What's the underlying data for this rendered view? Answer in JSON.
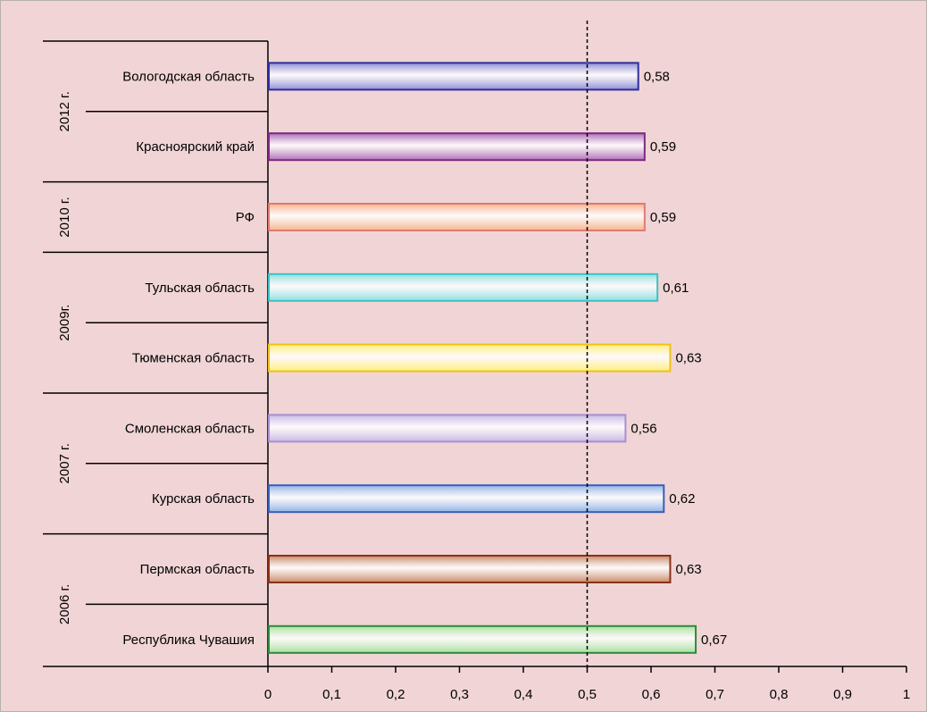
{
  "chart_data": {
    "type": "bar",
    "orientation": "horizontal",
    "categories": [
      "Вологодская область",
      "Красноярский край",
      "РФ",
      "Тульская область",
      "Тюменская область",
      "Смоленская область",
      "Курская область",
      "Пермская область",
      "Республика Чувашия"
    ],
    "values": [
      0.58,
      0.59,
      0.59,
      0.61,
      0.63,
      0.56,
      0.62,
      0.63,
      0.67
    ],
    "value_labels": [
      "0,58",
      "0,59",
      "0,59",
      "0,61",
      "0,63",
      "0,56",
      "0,62",
      "0,63",
      "0,67"
    ],
    "bar_colors": [
      "#8f8fd6",
      "#b06fb8",
      "#f7b48f",
      "#8fe0e0",
      "#fff07a",
      "#c9b8e6",
      "#8fb4e8",
      "#c98a6a",
      "#a8e0a0"
    ],
    "bar_borders": [
      "#2c2f9a",
      "#7a2a80",
      "#e07a70",
      "#40c0c4",
      "#f0c020",
      "#a890d0",
      "#3a5fb8",
      "#8a3018",
      "#2e8a3a"
    ],
    "groups": [
      {
        "label": "2012 г.",
        "span": [
          0,
          1
        ]
      },
      {
        "label": "2010 г.",
        "span": [
          2,
          2
        ]
      },
      {
        "label": "2009г.",
        "span": [
          3,
          4
        ]
      },
      {
        "label": "2007 г.",
        "span": [
          5,
          6
        ]
      },
      {
        "label": "2006 г.",
        "span": [
          7,
          8
        ]
      }
    ],
    "xlim": [
      0,
      1
    ],
    "x_ticks": [
      0,
      0.1,
      0.2,
      0.3,
      0.4,
      0.5,
      0.6,
      0.7,
      0.8,
      0.9,
      1
    ],
    "x_tick_labels": [
      "0",
      "0,1",
      "0,2",
      "0,3",
      "0,4",
      "0,5",
      "0,6",
      "0,7",
      "0,8",
      "0,9",
      "1"
    ],
    "reference_line": {
      "x": 0.5,
      "style": "dashed"
    },
    "title": "",
    "xlabel": "",
    "ylabel": ""
  }
}
